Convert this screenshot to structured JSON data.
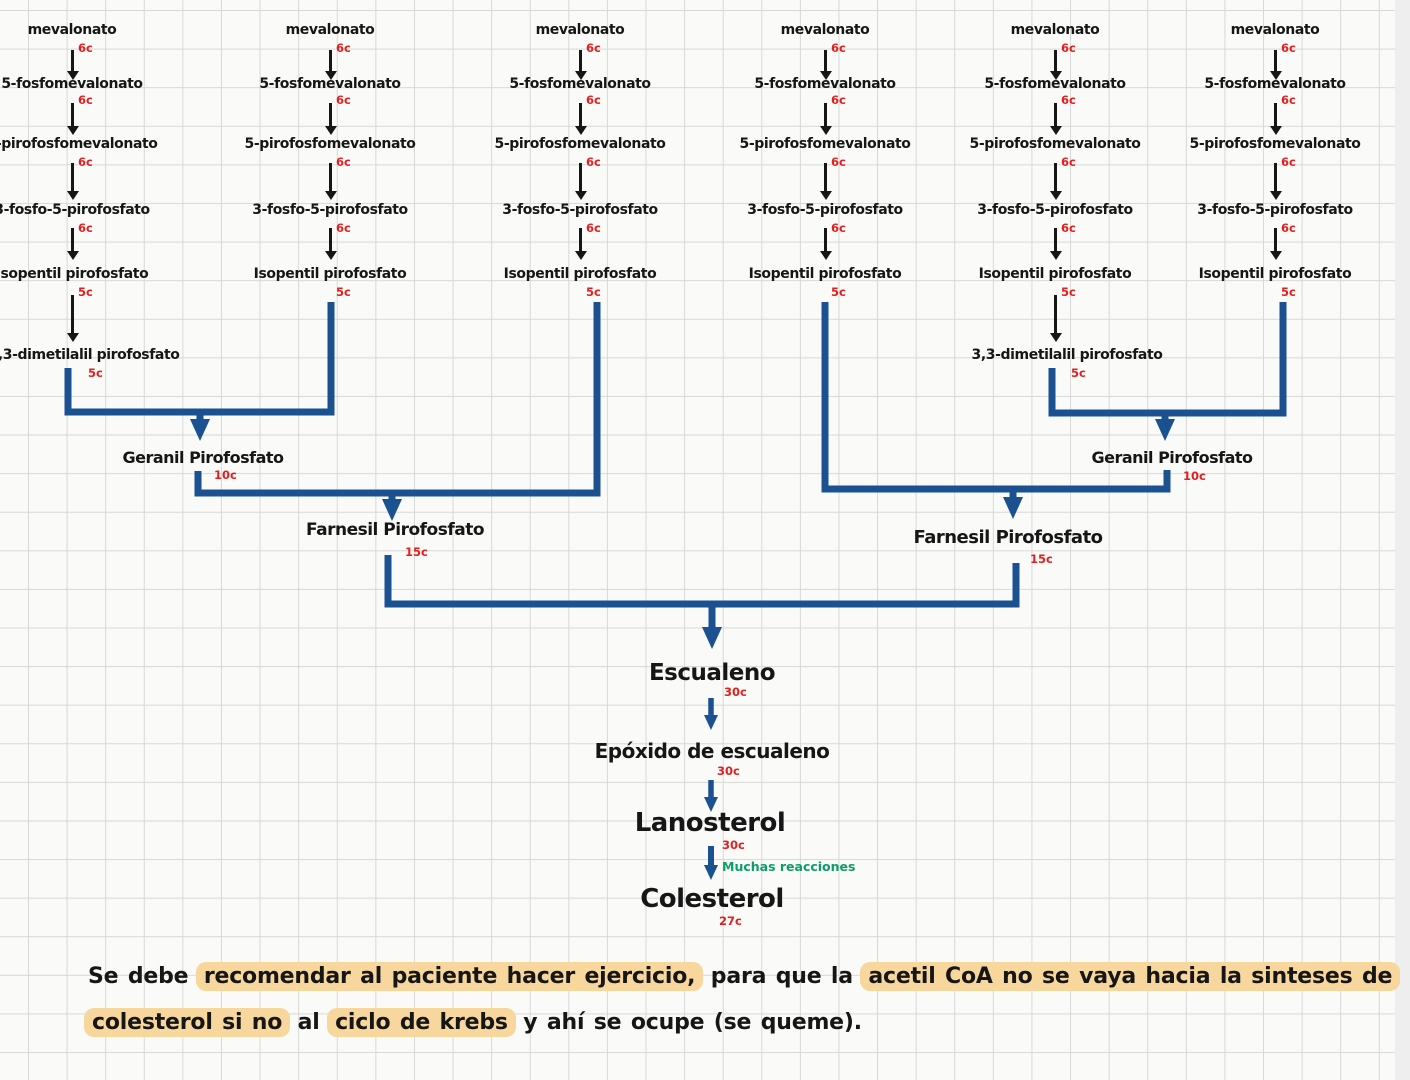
{
  "palette": {
    "ink": "#161616",
    "red": "#e02020",
    "blue": "#1b5191",
    "green": "#0b9e6a",
    "highlight": "#f7d79d",
    "grid_line": "#d8d8d8",
    "paper": "#fafaf8"
  },
  "chain": {
    "steps": [
      {
        "label": "mevalonato",
        "carbons": "6c"
      },
      {
        "label": "5-fosfomevalonato",
        "carbons": "6c"
      },
      {
        "label": "5-pirofosfomevalonato",
        "carbons": "6c"
      },
      {
        "label": "3-fosfo-5-pirofosfato",
        "carbons": "6c"
      },
      {
        "label": "Isopentil pirofosfato",
        "carbons": "5c"
      }
    ],
    "dimetilalil": {
      "label": "3,3-dimetilalil pirofosfato",
      "carbons": "5c"
    }
  },
  "merges": {
    "geranil": {
      "label": "Geranil Pirofosfato",
      "carbons": "10c"
    },
    "farnesil": {
      "label": "Farnesil Pirofosfato",
      "carbons": "15c"
    }
  },
  "tail": {
    "escualeno": {
      "label": "Escualeno",
      "carbons": "30c"
    },
    "epoxido": {
      "label": "Epóxido de escualeno",
      "carbons": "30c"
    },
    "lanosterol": {
      "label": "Lanosterol",
      "carbons": "30c"
    },
    "reaction_note": "Muchas reacciones",
    "colesterol": {
      "label": "Colesterol",
      "carbons": "27c"
    }
  },
  "note": {
    "line1": [
      {
        "text": "Se debe ",
        "highlight": false
      },
      {
        "text": "recomendar al paciente hacer ejercicio,",
        "highlight": true
      },
      {
        "text": " para que la ",
        "highlight": false
      },
      {
        "text": "acetil CoA no se vaya hacia la sinteses de",
        "highlight": true
      }
    ],
    "line2": [
      {
        "text": "colesterol si no",
        "highlight": true
      },
      {
        "text": " al ",
        "highlight": false
      },
      {
        "text": "ciclo de krebs",
        "highlight": true
      },
      {
        "text": " y ahí se ocupe (se queme).",
        "highlight": false
      }
    ]
  }
}
